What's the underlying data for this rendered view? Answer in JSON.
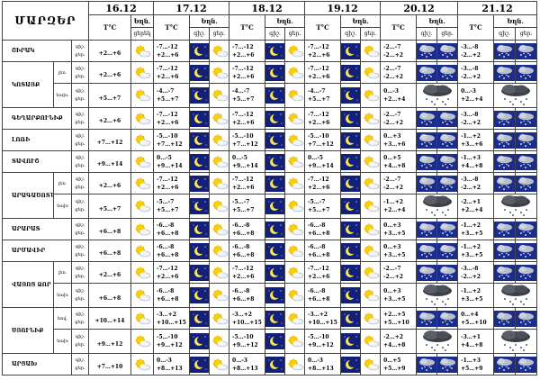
{
  "table_title": "ՄԱՐԶԵՐ",
  "dates": [
    "16.12",
    "17.12",
    "18.12",
    "19.12",
    "20.12",
    "21.12"
  ],
  "temp_label": "T°C",
  "sky_label": "Եղն.",
  "day_label": "ցերեկ",
  "night_label": "գիշ.",
  "day_abbrev": "ցեր.",
  "regions": [
    {
      "name": "ՇԻՐԱԿ",
      "rows": [
        {
          "sub": "",
          "day16": "+2…+6",
          "temps": [
            [
              "-7…-12",
              "+2…+6"
            ],
            [
              "-7…-12",
              "+2…+6"
            ],
            [
              "-7…-12",
              "+2…+6"
            ],
            [
              "-2…-7",
              "-2…+2"
            ],
            [
              "-3…-8",
              "-2…+2"
            ]
          ]
        }
      ]
    },
    {
      "name": "ԿՈՏԱՅՔ",
      "rows": [
        {
          "sub": "լեռ.",
          "day16": "+2…+6",
          "temps": [
            [
              "-7…-12",
              "+2…+6"
            ],
            [
              "-7…-12",
              "+2…+6"
            ],
            [
              "-7…-12",
              "+2…+6"
            ],
            [
              "-2…-7",
              "-2…+2"
            ],
            [
              "-3…-8",
              "-2…+2"
            ]
          ]
        },
        {
          "sub": "նախ.",
          "day16": "+5…+7",
          "temps": [
            [
              "-4…-7",
              "+5…+7"
            ],
            [
              "-4…-7",
              "+5…+7"
            ],
            [
              "-4…-7",
              "+5…+7"
            ],
            [
              "0…-3",
              "+2…+4"
            ],
            [
              "0…-3",
              "+2…+4"
            ]
          ]
        }
      ]
    },
    {
      "name": "ԳԵՂԱՐՔՈՒՆԻՔ",
      "rows": [
        {
          "sub": "",
          "day16": "+2…+6",
          "temps": [
            [
              "-7…-12",
              "+2…+6"
            ],
            [
              "-7…-12",
              "+2…+6"
            ],
            [
              "-7…-12",
              "+2…+6"
            ],
            [
              "-2…-7",
              "-2…+2"
            ],
            [
              "-3…-8",
              "-2…+2"
            ]
          ]
        }
      ]
    },
    {
      "name": "ԼՈՌԻ",
      "rows": [
        {
          "sub": "",
          "day16": "+7…+12",
          "temps": [
            [
              "-5…-10",
              "+7…+12"
            ],
            [
              "-5…-10",
              "+7…+12"
            ],
            [
              "-5…-10",
              "+7…+12"
            ],
            [
              "0…+3",
              "+3…+6"
            ],
            [
              "-1…+2",
              "+3…+6"
            ]
          ]
        }
      ]
    },
    {
      "name": "ՏԱՎՈՒՇ",
      "rows": [
        {
          "sub": "",
          "day16": "+9…+14",
          "temps": [
            [
              "0…-5",
              "+9…+14"
            ],
            [
              "0…-5",
              "+9…+14"
            ],
            [
              "0…-5",
              "+9…+14"
            ],
            [
              "0…+5",
              "+4…+8"
            ],
            [
              "-1…+3",
              "+4…+8"
            ]
          ]
        }
      ]
    },
    {
      "name": "ԱՐԱԳԱԾՈՏՆ",
      "rows": [
        {
          "sub": "լեռ.",
          "day16": "+2…+6",
          "temps": [
            [
              "-7…-12",
              "+2…+6"
            ],
            [
              "-7…-12",
              "+2…+6"
            ],
            [
              "-7…-12",
              "+2…+6"
            ],
            [
              "-2…-7",
              "-2…+2"
            ],
            [
              "-3…-8",
              "-2…+2"
            ]
          ]
        },
        {
          "sub": "նախ",
          "day16": "+5…+7",
          "temps": [
            [
              "-5…-7",
              "+5…+7"
            ],
            [
              "-5…-7",
              "+5…+7"
            ],
            [
              "-5…-7",
              "+5…+7"
            ],
            [
              "-1…+2",
              "+2…+4"
            ],
            [
              "-2…+1",
              "+2…+4"
            ]
          ]
        }
      ]
    },
    {
      "name": "ԱՐԱՐԱՏ",
      "rows": [
        {
          "sub": "",
          "day16": "+6…+8",
          "temps": [
            [
              "-6…-8",
              "+6…+8"
            ],
            [
              "-6…-8",
              "+6…+8"
            ],
            [
              "-6…-8",
              "+6…+8"
            ],
            [
              "0…+3",
              "+3…+5"
            ],
            [
              "-1…+2",
              "+3…+5"
            ]
          ]
        }
      ]
    },
    {
      "name": "ԱՐՄԱՎԻՐ",
      "rows": [
        {
          "sub": "",
          "day16": "+6…+8",
          "temps": [
            [
              "-6…-8",
              "+6…+8"
            ],
            [
              "-6…-8",
              "+6…+8"
            ],
            [
              "-6…-8",
              "+6…+8"
            ],
            [
              "0…+3",
              "+3…+5"
            ],
            [
              "-1…+2",
              "+3…+5"
            ]
          ]
        }
      ]
    },
    {
      "name": "ՎԱՅՈՑ ՁՈՐ",
      "rows": [
        {
          "sub": "լեռ.",
          "day16": "+2…+6",
          "temps": [
            [
              "-7…-12",
              "+2…+6"
            ],
            [
              "-7…-12",
              "+2…+6"
            ],
            [
              "-7…-12",
              "+2…+6"
            ],
            [
              "-2…-7",
              "-2…+2"
            ],
            [
              "-3…-8",
              "-2…+2"
            ]
          ]
        },
        {
          "sub": "նախ",
          "day16": "+6…+8",
          "temps": [
            [
              "-6…-8",
              "+6…+8"
            ],
            [
              "-6…-8",
              "+6…+8"
            ],
            [
              "-6…-8",
              "+6…+8"
            ],
            [
              "0…+3",
              "+3…+5"
            ],
            [
              "-1…+2",
              "+3…+5"
            ]
          ]
        }
      ]
    },
    {
      "name": "ՍՅՈՒՆԻՔ",
      "rows": [
        {
          "sub": "հով.",
          "day16": "+10…+14",
          "temps": [
            [
              "-3…+2",
              "+10…+15"
            ],
            [
              "-3…+2",
              "+10…+15"
            ],
            [
              "-3…+2",
              "+10…+15"
            ],
            [
              "+2…+5",
              "+5…+10"
            ],
            [
              "0…+4",
              "+5…+10"
            ]
          ]
        },
        {
          "sub": "նախ",
          "day16": "+9…+12",
          "temps": [
            [
              "-5…-10",
              "+9…+12"
            ],
            [
              "-5…-10",
              "+9…+12"
            ],
            [
              "-5…-10",
              "+9…+12"
            ],
            [
              "-2…+2",
              "+4…+8"
            ],
            [
              "-3…+1",
              "+4…+8"
            ]
          ]
        }
      ]
    },
    {
      "name": "ԱՐՑԱԽ",
      "rows": [
        {
          "sub": "",
          "day16": "+7…+10",
          "temps": [
            [
              "0…-3",
              "+8…+13"
            ],
            [
              "0…-3",
              "+8…+13"
            ],
            [
              "0…-3",
              "+8…+13"
            ],
            [
              "0…+5",
              "+5…+9"
            ],
            [
              "-1…+3",
              "+5…+9"
            ]
          ]
        }
      ]
    }
  ]
}
